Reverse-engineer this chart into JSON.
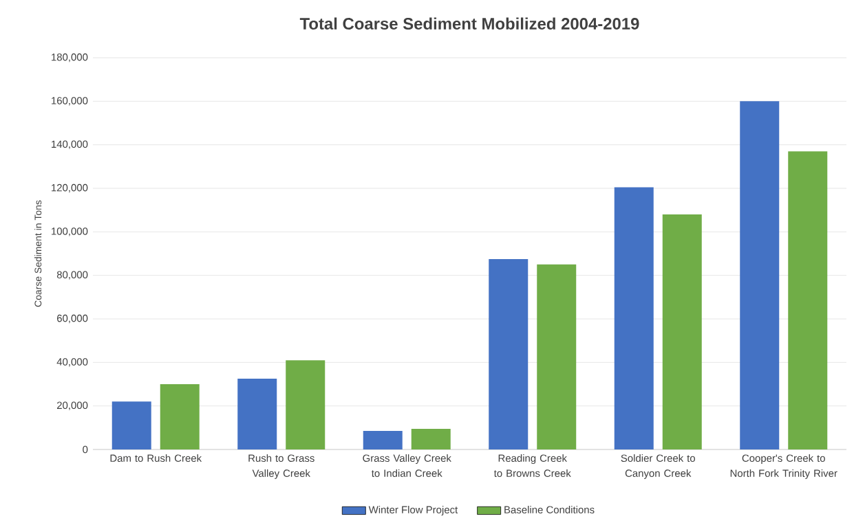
{
  "chart_data": {
    "type": "bar",
    "title": "Total Coarse Sediment Mobilized 2004-2019",
    "ylabel": "Coarse Sediment in Tons",
    "categories": [
      "Dam to Rush Creek",
      "Rush to Grass Valley Creek",
      "Grass Valley Creek to Indian Creek",
      "Reading Creek to Browns Creek",
      "Soldier Creek to Canyon Creek",
      "Cooper's Creek to North Fork Trinity River"
    ],
    "series": [
      {
        "name": "Winter Flow Project",
        "color": "#4472c4",
        "values": [
          22000,
          32500,
          8500,
          87500,
          120500,
          160000
        ]
      },
      {
        "name": "Baseline Conditions",
        "color": "#70ad47",
        "values": [
          30000,
          41000,
          9500,
          85000,
          108000,
          137000
        ]
      }
    ],
    "ylim": [
      0,
      180000
    ],
    "yticks": [
      0,
      {
        "value": 20000,
        "label": "20,000"
      },
      {
        "value": 40000,
        "label": "40,000"
      },
      {
        "value": 60000,
        "label": "60,000"
      },
      {
        "value": 80000,
        "label": "80,000"
      },
      {
        "value": 100000,
        "label": "100,000"
      },
      {
        "value": 120000,
        "label": "120,000"
      },
      {
        "value": 140000,
        "label": "140,000"
      },
      {
        "value": 160000,
        "label": "160,000"
      },
      {
        "value": 180000,
        "label": "180,000"
      }
    ],
    "grid": "y",
    "legend": "bottom"
  }
}
